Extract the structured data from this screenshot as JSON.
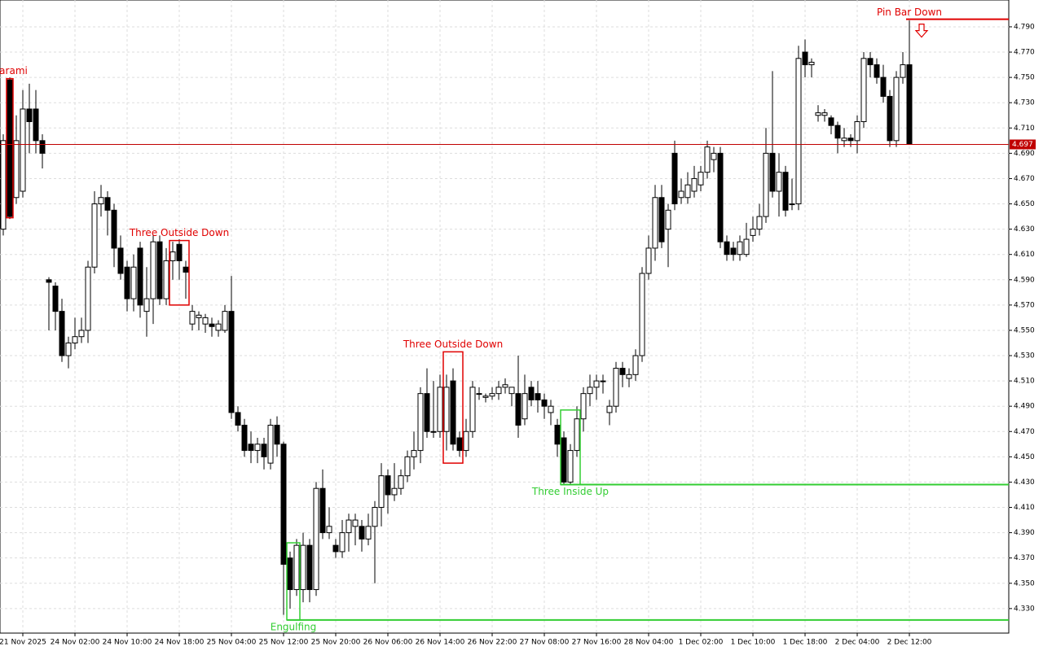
{
  "chart_data": {
    "type": "candlestick",
    "open": [
      4.63,
      4.748,
      4.655,
      4.66,
      4.725,
      4.725,
      4.7,
      4.59,
      4.585,
      4.565,
      4.53,
      4.54,
      4.545,
      4.55,
      4.6,
      4.65,
      4.655,
      4.645,
      4.615,
      4.6,
      4.575,
      4.615,
      4.565,
      4.575,
      4.62,
      4.575,
      4.605,
      4.618,
      4.6,
      4.555,
      4.56,
      4.555,
      4.555,
      4.55,
      4.55,
      4.565,
      4.485,
      4.475,
      4.46,
      4.455,
      4.46,
      4.445,
      4.475,
      4.46,
      4.37,
      4.345,
      4.345,
      4.38,
      4.345,
      4.425,
      4.39,
      4.38,
      4.375,
      4.39,
      4.395,
      4.395,
      4.385,
      4.395,
      4.41,
      4.435,
      4.42,
      4.425,
      4.435,
      4.45,
      4.455,
      4.5,
      4.47,
      4.47,
      4.47,
      4.51,
      4.465,
      4.455,
      4.47,
      4.5,
      4.497,
      4.498,
      4.5,
      4.505,
      4.5,
      4.5,
      4.48,
      4.505,
      4.5,
      4.495,
      4.485,
      4.475,
      4.465,
      4.43,
      4.455,
      4.48,
      4.5,
      4.505,
      4.51,
      4.485,
      4.49,
      4.52,
      4.512,
      4.515,
      4.53,
      4.595,
      4.615,
      4.655,
      4.63,
      4.69,
      4.655,
      4.655,
      4.66,
      4.665,
      4.675,
      4.685,
      4.69,
      4.62,
      4.615,
      4.61,
      4.61,
      4.625,
      4.63,
      4.64,
      4.69,
      4.66,
      4.675,
      4.65,
      4.65,
      4.77,
      4.76,
      4.72,
      4.72,
      4.718,
      4.712,
      4.7,
      4.702,
      4.7,
      4.715,
      4.765,
      4.76,
      4.75,
      4.735,
      4.7,
      4.75,
      4.76
    ],
    "high": [
      4.705,
      4.75,
      4.72,
      4.74,
      4.745,
      4.74,
      4.705,
      4.592,
      4.588,
      4.575,
      4.545,
      4.56,
      4.56,
      4.605,
      4.66,
      4.665,
      4.66,
      4.65,
      4.625,
      4.605,
      4.61,
      4.62,
      4.6,
      4.625,
      4.625,
      4.615,
      4.62,
      4.622,
      4.605,
      4.57,
      4.565,
      4.563,
      4.56,
      4.558,
      4.57,
      4.593,
      4.49,
      4.48,
      4.47,
      4.465,
      4.465,
      4.48,
      4.482,
      4.462,
      4.375,
      4.385,
      4.39,
      4.385,
      4.43,
      4.44,
      4.41,
      4.385,
      4.4,
      4.405,
      4.405,
      4.4,
      4.405,
      4.415,
      4.445,
      4.44,
      4.445,
      4.44,
      4.455,
      4.47,
      4.505,
      4.52,
      4.51,
      4.515,
      4.515,
      4.52,
      4.47,
      4.48,
      4.51,
      4.505,
      4.5,
      4.505,
      4.51,
      4.512,
      4.505,
      4.53,
      4.515,
      4.51,
      4.51,
      4.5,
      4.495,
      4.48,
      4.47,
      4.46,
      4.49,
      4.505,
      4.515,
      4.515,
      4.515,
      4.495,
      4.525,
      4.525,
      4.52,
      4.535,
      4.6,
      4.625,
      4.665,
      4.665,
      4.65,
      4.7,
      4.67,
      4.675,
      4.68,
      4.68,
      4.7,
      4.695,
      4.695,
      4.625,
      4.62,
      4.625,
      4.635,
      4.64,
      4.65,
      4.71,
      4.755,
      4.69,
      4.68,
      4.67,
      4.775,
      4.78,
      4.765,
      4.728,
      4.725,
      4.72,
      4.715,
      4.71,
      4.705,
      4.72,
      4.77,
      4.77,
      4.765,
      4.76,
      4.74,
      4.755,
      4.77,
      4.795
    ],
    "low": [
      4.625,
      4.638,
      4.65,
      4.655,
      4.69,
      4.69,
      4.678,
      4.55,
      4.55,
      4.525,
      4.52,
      4.535,
      4.54,
      4.54,
      4.595,
      4.64,
      4.625,
      4.6,
      4.59,
      4.565,
      4.565,
      4.56,
      4.545,
      4.555,
      4.57,
      4.57,
      4.59,
      4.59,
      4.575,
      4.55,
      4.55,
      4.548,
      4.545,
      4.545,
      4.548,
      4.48,
      4.47,
      4.45,
      4.445,
      4.445,
      4.44,
      4.44,
      4.45,
      4.325,
      4.33,
      4.34,
      4.335,
      4.335,
      4.34,
      4.385,
      4.385,
      4.37,
      4.37,
      4.375,
      4.38,
      4.375,
      4.38,
      4.35,
      4.395,
      4.405,
      4.415,
      4.42,
      4.43,
      4.44,
      4.445,
      4.465,
      4.465,
      4.465,
      4.455,
      4.455,
      4.45,
      4.45,
      4.465,
      4.495,
      4.493,
      4.495,
      4.495,
      4.5,
      4.49,
      4.465,
      4.475,
      4.49,
      4.485,
      4.48,
      4.475,
      4.45,
      4.428,
      4.428,
      4.45,
      4.47,
      4.49,
      4.495,
      4.5,
      4.475,
      4.485,
      4.505,
      4.505,
      4.51,
      4.525,
      4.59,
      4.605,
      4.615,
      4.6,
      4.645,
      4.65,
      4.65,
      4.655,
      4.66,
      4.67,
      4.675,
      4.615,
      4.605,
      4.605,
      4.605,
      4.608,
      4.62,
      4.625,
      4.635,
      4.655,
      4.64,
      4.64,
      4.645,
      4.645,
      4.75,
      4.75,
      4.715,
      4.715,
      4.705,
      4.69,
      4.695,
      4.695,
      4.69,
      4.71,
      4.75,
      4.745,
      4.73,
      4.695,
      4.695,
      4.745,
      4.697
    ],
    "close": [
      4.7,
      4.64,
      4.7,
      4.725,
      4.715,
      4.7,
      4.69,
      4.588,
      4.565,
      4.53,
      4.54,
      4.545,
      4.55,
      4.6,
      4.65,
      4.655,
      4.645,
      4.615,
      4.595,
      4.575,
      4.6,
      4.57,
      4.575,
      4.62,
      4.575,
      4.605,
      4.612,
      4.605,
      4.596,
      4.565,
      4.562,
      4.56,
      4.553,
      4.555,
      4.565,
      4.485,
      4.475,
      4.455,
      4.455,
      4.46,
      4.45,
      4.475,
      4.46,
      4.365,
      4.345,
      4.38,
      4.38,
      4.345,
      4.425,
      4.39,
      4.395,
      4.375,
      4.39,
      4.4,
      4.4,
      4.385,
      4.395,
      4.41,
      4.435,
      4.42,
      4.425,
      4.435,
      4.45,
      4.455,
      4.5,
      4.47,
      4.47,
      4.505,
      4.505,
      4.46,
      4.455,
      4.47,
      4.505,
      4.5,
      4.498,
      4.5,
      4.505,
      4.507,
      4.505,
      4.475,
      4.5,
      4.495,
      4.495,
      4.49,
      4.49,
      4.46,
      4.43,
      4.455,
      4.48,
      4.5,
      4.505,
      4.51,
      4.51,
      4.49,
      4.52,
      4.515,
      4.515,
      4.53,
      4.595,
      4.615,
      4.655,
      4.62,
      4.645,
      4.65,
      4.66,
      4.665,
      4.67,
      4.675,
      4.695,
      4.69,
      4.62,
      4.61,
      4.61,
      4.62,
      4.622,
      4.63,
      4.64,
      4.69,
      4.66,
      4.675,
      4.645,
      4.65,
      4.765,
      4.76,
      4.762,
      4.722,
      4.722,
      4.712,
      4.702,
      4.702,
      4.7,
      4.715,
      4.765,
      4.76,
      4.75,
      4.735,
      4.7,
      4.75,
      4.76,
      4.697
    ],
    "xticks": [
      {
        "value": 3,
        "label": "21 Nov 2025"
      },
      {
        "value": 11,
        "label": "24 Nov 02:00"
      },
      {
        "value": 19,
        "label": "24 Nov 10:00"
      },
      {
        "value": 27,
        "label": "24 Nov 18:00"
      },
      {
        "value": 35,
        "label": "25 Nov 04:00"
      },
      {
        "value": 43,
        "label": "25 Nov 12:00"
      },
      {
        "value": 51,
        "label": "25 Nov 20:00"
      },
      {
        "value": 59,
        "label": "26 Nov 06:00"
      },
      {
        "value": 67,
        "label": "26 Nov 14:00"
      },
      {
        "value": 75,
        "label": "26 Nov 22:00"
      },
      {
        "value": 83,
        "label": "27 Nov 08:00"
      },
      {
        "value": 91,
        "label": "27 Nov 16:00"
      },
      {
        "value": 99,
        "label": "28 Nov 04:00"
      },
      {
        "value": 107,
        "label": "1 Dec 02:00"
      },
      {
        "value": 115,
        "label": "1 Dec 10:00"
      },
      {
        "value": 123,
        "label": "1 Dec 18:00"
      },
      {
        "value": 131,
        "label": "2 Dec 04:00"
      },
      {
        "value": 139,
        "label": "2 Dec 12:00"
      }
    ],
    "ylim": [
      4.3106,
      4.8112
    ],
    "yticks": [
      {
        "value": 4.79,
        "label": "4.790"
      },
      {
        "value": 4.77,
        "label": "4.770"
      },
      {
        "value": 4.75,
        "label": "4.750"
      },
      {
        "value": 4.73,
        "label": "4.730"
      },
      {
        "value": 4.71,
        "label": "4.710"
      },
      {
        "value": 4.69,
        "label": "4.690"
      },
      {
        "value": 4.67,
        "label": "4.670"
      },
      {
        "value": 4.65,
        "label": "4.650"
      },
      {
        "value": 4.63,
        "label": "4.630"
      },
      {
        "value": 4.61,
        "label": "4.610"
      },
      {
        "value": 4.59,
        "label": "4.590"
      },
      {
        "value": 4.57,
        "label": "4.570"
      },
      {
        "value": 4.55,
        "label": "4.550"
      },
      {
        "value": 4.53,
        "label": "4.530"
      },
      {
        "value": 4.51,
        "label": "4.510"
      },
      {
        "value": 4.49,
        "label": "4.490"
      },
      {
        "value": 4.47,
        "label": "4.470"
      },
      {
        "value": 4.45,
        "label": "4.450"
      },
      {
        "value": 4.43,
        "label": "4.430"
      },
      {
        "value": 4.41,
        "label": "4.410"
      },
      {
        "value": 4.39,
        "label": "4.390"
      },
      {
        "value": 4.37,
        "label": "4.370"
      },
      {
        "value": 4.35,
        "label": "4.350"
      },
      {
        "value": 4.33,
        "label": "4.330"
      }
    ],
    "grid": true,
    "up_color": "#ffffff",
    "down_color": "#000000",
    "current_price": 4.697,
    "current_price_color": "#c00000",
    "patterns": [
      {
        "label": "Harami",
        "color": "#e00000",
        "from": 1,
        "to": 1,
        "high": 4.749,
        "low": 4.639,
        "label_pos": "above"
      },
      {
        "label": "Three Outside Down",
        "color": "#e00000",
        "from": 26,
        "to": 28,
        "high": 4.621,
        "low": 4.57,
        "label_pos": "above"
      },
      {
        "label": "Engulfing",
        "color": "#32cd32",
        "from": 44,
        "to": 45,
        "high": 4.382,
        "low": 4.321,
        "level": 4.321,
        "label_pos": "below"
      },
      {
        "label": "Three Outside Down",
        "color": "#e00000",
        "from": 68,
        "to": 70,
        "high": 4.533,
        "low": 4.445,
        "label_pos": "above"
      },
      {
        "label": "Three Inside Up",
        "color": "#32cd32",
        "from": 86,
        "to": 88,
        "high": 4.487,
        "low": 4.428,
        "level": 4.428,
        "label_pos": "below"
      },
      {
        "label": "Pin Bar Down",
        "color": "#e00000",
        "from": 139,
        "to": 139,
        "level": 4.796,
        "arrow": "down",
        "label_pos": "above"
      }
    ]
  }
}
